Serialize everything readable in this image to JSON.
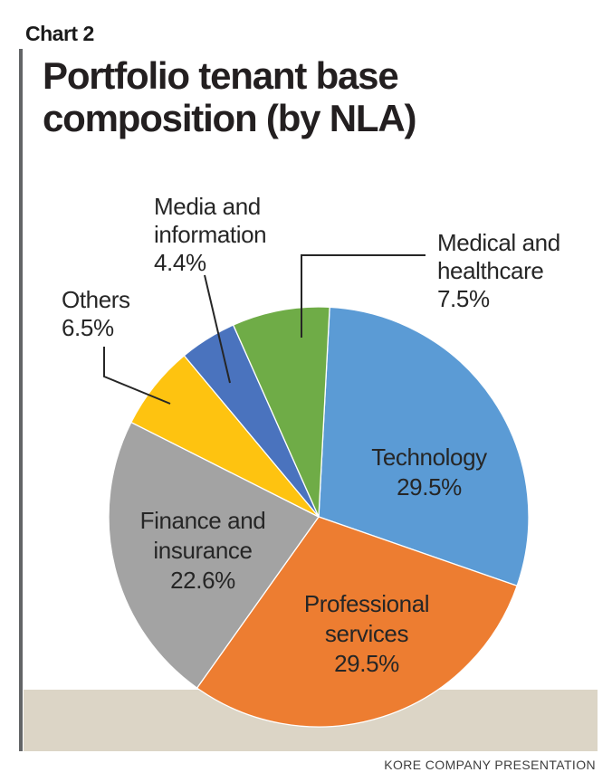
{
  "chart_label": "Chart 2",
  "title": {
    "line1": "Portfolio tenant base",
    "line2": "composition (by NLA)"
  },
  "footer": "KORE COMPANY PRESENTATION",
  "colors": {
    "background": "#ffffff",
    "bottom_band": "#dcd5c6",
    "left_rule": "#636567",
    "title_text": "#231f20",
    "label_text": "#262626",
    "leader_line": "#262626"
  },
  "chart_data": {
    "type": "pie",
    "title": "Portfolio tenant base composition (by NLA)",
    "unit": "%",
    "direction": "clockwise",
    "start_angle_deg": 3,
    "legend_position": "labels-on-and-around-pie",
    "slices": [
      {
        "label": "Technology",
        "value": 29.5,
        "pct_label": "29.5%",
        "color": "#5B9BD5",
        "label_position": "inside"
      },
      {
        "label": "Professional services",
        "value": 29.5,
        "pct_label": "29.5%",
        "color": "#ED7D31",
        "label_position": "inside"
      },
      {
        "label": "Finance and insurance",
        "value": 22.6,
        "pct_label": "22.6%",
        "color": "#A3A3A3",
        "label_position": "inside"
      },
      {
        "label": "Others",
        "value": 6.5,
        "pct_label": "6.5%",
        "color": "#FEC310",
        "label_position": "outside"
      },
      {
        "label": "Media and information",
        "value": 4.4,
        "pct_label": "4.4%",
        "color": "#4A73BE",
        "label_position": "outside"
      },
      {
        "label": "Medical and healthcare",
        "value": 7.5,
        "pct_label": "7.5%",
        "color": "#6FAC47",
        "label_position": "outside"
      }
    ]
  }
}
